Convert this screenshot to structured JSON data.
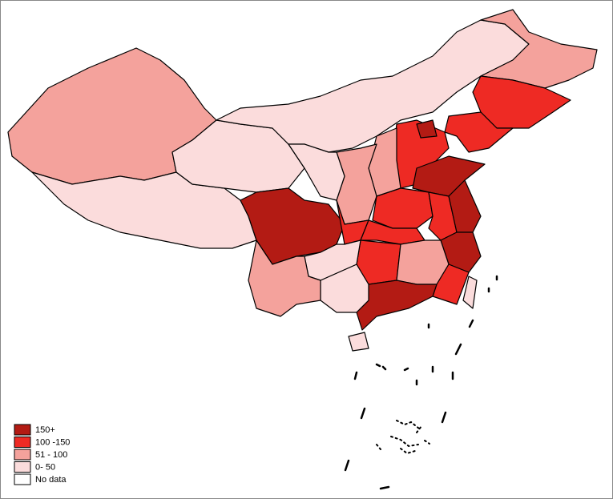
{
  "legend": {
    "items": [
      {
        "label": "150+",
        "color": "#b31b14"
      },
      {
        "label": "100 -150",
        "color": "#ee2a24"
      },
      {
        "label": "51 - 100",
        "color": "#f4a29c"
      },
      {
        "label": "0- 50",
        "color": "#fbdcdc"
      },
      {
        "label": "No data",
        "color": "#ffffff"
      }
    ]
  }
}
